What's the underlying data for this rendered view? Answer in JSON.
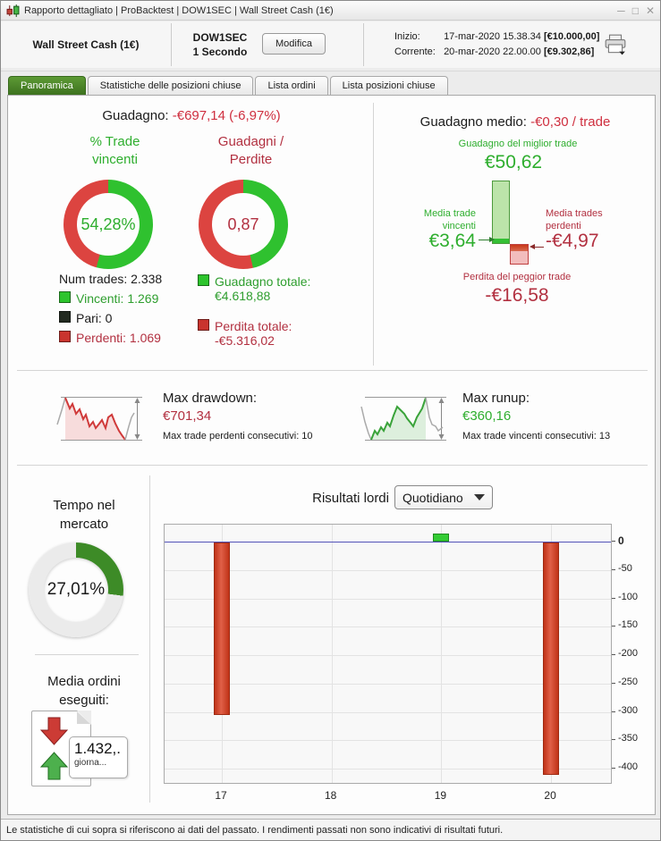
{
  "window": {
    "title_parts": [
      "Rapporto dettagliato",
      "ProBacktest",
      "DOW1SEC",
      "Wall Street Cash (1€)"
    ],
    "icons": {
      "app": "candlestick-chart-icon",
      "minimize": "minimize-icon",
      "maximize": "maximize-icon",
      "close": "close-icon",
      "print": "printer-icon",
      "dropdown_arrow": "chevron-down-icon"
    },
    "controls": {
      "minimize": "─",
      "maximize": "□",
      "close": "✕"
    }
  },
  "header": {
    "system_name": "Wall Street Cash (1€)",
    "instrument": "DOW1SEC\n1 Secondo",
    "modify_button": "Modifica",
    "start_label": "Inizio:",
    "start_datetime": "17-mar-2020 15.38.34",
    "start_capital": "[€10.000,00]",
    "current_label": "Corrente:",
    "current_datetime": "20-mar-2020 22.00.00",
    "current_capital": "[€9.302,86]"
  },
  "tabs": [
    {
      "label": "Panoramica",
      "active": true
    },
    {
      "label": "Statistiche delle posizioni chiuse",
      "active": false
    },
    {
      "label": "Lista ordini",
      "active": false
    },
    {
      "label": "Lista posizioni chiuse",
      "active": false
    }
  ],
  "overview": {
    "gain_label": "Guadagno:",
    "gain_value": "-€697,14 (-6,97%)",
    "win_donut": {
      "title": "% Trade\nvincenti",
      "center": "54,28%",
      "pct": 54.28,
      "fill": "#2fc12f",
      "rest": "#dc4440"
    },
    "ratio_donut": {
      "title": "Guadagni /\nPerdite",
      "center": "0,87",
      "pct": 46.5,
      "fill": "#2fc12f",
      "rest": "#dc4440"
    },
    "num_trades": "Num trades: 2.338",
    "legend": [
      {
        "label": "Vincenti: 1.269",
        "square": "#2dc42d",
        "color": "#2e9e2e"
      },
      {
        "label": "Pari: 0",
        "square": "#222a20",
        "color": "#1a1a1a"
      },
      {
        "label": "Perdenti: 1.069",
        "square": "#c9342e",
        "color": "#b23040"
      }
    ],
    "totals": [
      {
        "label": "Guadagno totale:\n€4.618,88",
        "square": "#2dc42d",
        "color": "#2e9e2e"
      },
      {
        "label": "Perdita totale:\n-€5.316,02",
        "square": "#c9342e",
        "color": "#b23040"
      }
    ]
  },
  "averages": {
    "avg_label": "Guadagno medio:",
    "avg_value": "-€0,30 / trade",
    "best_label": "Guadagno del miglior trade",
    "best_value": "€50,62",
    "avg_win_label": "Media trade\nvincenti",
    "avg_win_value": "€3,64",
    "avg_loss_label": "Media trades\nperdenti",
    "avg_loss_value": "-€4,97",
    "worst_label": "Perdita del peggior trade",
    "worst_value": "-€16,58"
  },
  "drawdown": {
    "label": "Max drawdown:",
    "value": "€701,34",
    "sub": "Max trade perdenti consecutivi:  10"
  },
  "runup": {
    "label": "Max runup:",
    "value": "€360,16",
    "sub": "Max trade vincenti consecutivi: 13"
  },
  "time_in_market": {
    "title": "Tempo nel\nmercato",
    "center": "27,01%",
    "pct": 27.01,
    "fill": "#3d8b27",
    "rest": "#ebebeb"
  },
  "avg_orders": {
    "title": "Media ordini\neseguiti:",
    "value": "1.432,.",
    "unit": "giorna..."
  },
  "gross_results": {
    "label": "Risultati lordi",
    "period_selected": "Quotidiano"
  },
  "chart_data": {
    "type": "bar",
    "title": "Risultati lordi — Quotidiano",
    "categories": [
      "17",
      "18",
      "19",
      "20"
    ],
    "values": [
      -303,
      0,
      15,
      -410
    ],
    "xlabel": "",
    "ylabel": "",
    "ylim": [
      -425,
      30
    ],
    "yticks": [
      0,
      -50,
      -100,
      -150,
      -200,
      -250,
      -300,
      -350,
      -400
    ],
    "grid": true,
    "legend_position": "none",
    "zero_line_color": "#5353b8",
    "bar_color_positive": "#33cc33",
    "bar_color_negative_light": "#e06048",
    "bar_color_negative_dark": "#c03318"
  },
  "status_bar": "Le statistiche di cui sopra si riferiscono ai dati del passato. I rendimenti passati non sono indicativi di risultati futuri."
}
